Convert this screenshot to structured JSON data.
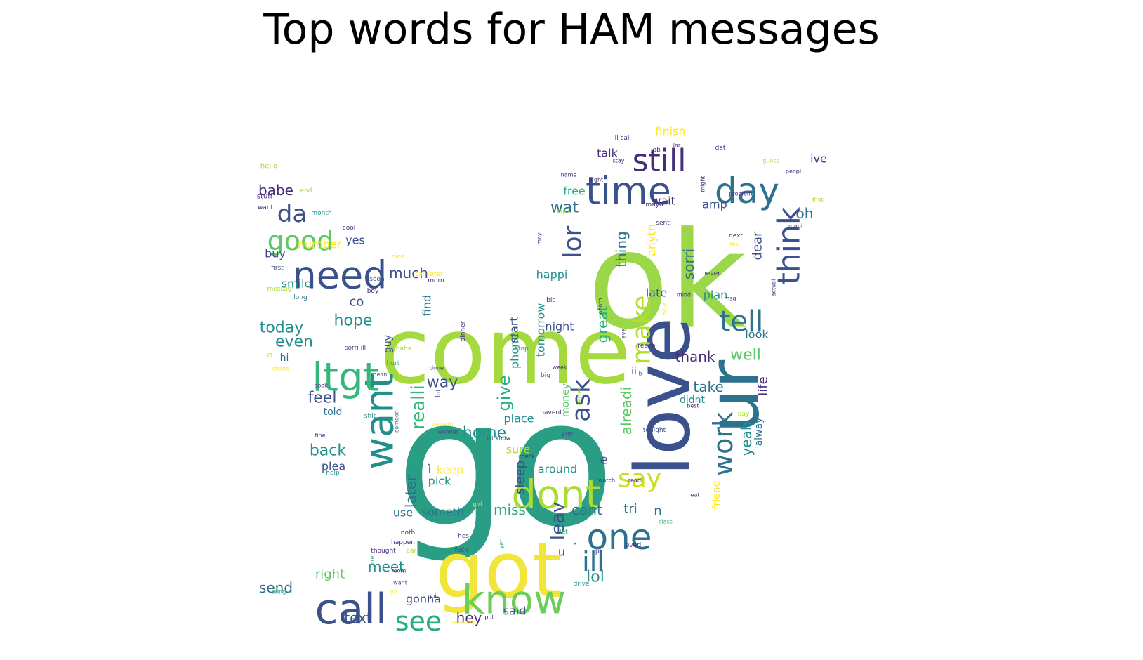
{
  "chart_data": {
    "type": "wordcloud",
    "title": "Top words for HAM messages",
    "mask_shape": "twitter-bird",
    "background": "#ffffff",
    "colormap": "viridis",
    "palette": [
      "#440154",
      "#472c7a",
      "#3b518b",
      "#2c718e",
      "#21908d",
      "#27ad81",
      "#5cc863",
      "#aadc32",
      "#fde725"
    ],
    "words": [
      {
        "text": "go",
        "rank": 1,
        "color": "#2a9d85"
      },
      {
        "text": "ok",
        "rank": 2,
        "color": "#9ad84a"
      },
      {
        "text": "come",
        "rank": 3,
        "color": "#a5da3e"
      },
      {
        "text": "got",
        "rank": 4,
        "color": "#f2e53a"
      },
      {
        "text": "love",
        "rank": 5,
        "color": "#3b518b"
      },
      {
        "text": "ur",
        "rank": 6,
        "color": "#2c718e"
      },
      {
        "text": "know",
        "rank": 7,
        "color": "#6dcd59"
      },
      {
        "text": "call",
        "rank": 8,
        "color": "#3b518b"
      },
      {
        "text": "time",
        "rank": 9,
        "color": "#3b518b"
      },
      {
        "text": "want",
        "rank": 10,
        "color": "#21908d"
      },
      {
        "text": "ltgt",
        "rank": 11,
        "color": "#35b779"
      },
      {
        "text": "need",
        "rank": 12,
        "color": "#3b518b"
      },
      {
        "text": "day",
        "rank": 13,
        "color": "#2c718e"
      },
      {
        "text": "dont",
        "rank": 14,
        "color": "#aadc32"
      },
      {
        "text": "one",
        "rank": 15,
        "color": "#2c718e"
      },
      {
        "text": "good",
        "rank": 16,
        "color": "#5cc863"
      },
      {
        "text": "still",
        "rank": 17,
        "color": "#472c7a"
      },
      {
        "text": "think",
        "rank": 18,
        "color": "#3b518b"
      },
      {
        "text": "tell",
        "rank": 19,
        "color": "#2c718e"
      },
      {
        "text": "ask",
        "rank": 20,
        "color": "#3b518b"
      },
      {
        "text": "see",
        "rank": 21,
        "color": "#27ad81"
      },
      {
        "text": "say",
        "rank": 22,
        "color": "#c8e020"
      },
      {
        "text": "work",
        "rank": 23,
        "color": "#2c718e"
      },
      {
        "text": "make",
        "rank": 24,
        "color": "#b5de2b"
      },
      {
        "text": "da",
        "rank": 25,
        "color": "#3b518b"
      },
      {
        "text": "ill",
        "rank": 26,
        "color": "#2c718e"
      },
      {
        "text": "lor",
        "rank": 27,
        "color": "#3b518b"
      },
      {
        "text": "home",
        "rank": 28,
        "color": "#21908d"
      },
      {
        "text": "hope",
        "rank": 29,
        "color": "#21908d"
      },
      {
        "text": "today",
        "rank": 30,
        "color": "#21908d"
      },
      {
        "text": "wat",
        "rank": 31,
        "color": "#2c718e"
      },
      {
        "text": "babe",
        "rank": 32,
        "color": "#472c7a"
      },
      {
        "text": "much",
        "rank": 33,
        "color": "#3b518b"
      },
      {
        "text": "well",
        "rank": 34,
        "color": "#5cc863"
      },
      {
        "text": "take",
        "rank": 35,
        "color": "#2c718e"
      },
      {
        "text": "way",
        "rank": 36,
        "color": "#3b518b"
      },
      {
        "text": "give",
        "rank": 37,
        "color": "#27ad81"
      },
      {
        "text": "realli",
        "rank": 38,
        "color": "#35b779"
      },
      {
        "text": "feel",
        "rank": 39,
        "color": "#3b518b"
      },
      {
        "text": "back",
        "rank": 40,
        "color": "#21908d"
      },
      {
        "text": "even",
        "rank": 41,
        "color": "#21908d"
      },
      {
        "text": "meet",
        "rank": 42,
        "color": "#21908d"
      },
      {
        "text": "miss",
        "rank": 43,
        "color": "#27ad81"
      },
      {
        "text": "cant",
        "rank": 44,
        "color": "#2c718e"
      },
      {
        "text": "great",
        "rank": 45,
        "color": "#27ad81"
      },
      {
        "text": "alreadi",
        "rank": 46,
        "color": "#5cc863"
      },
      {
        "text": "thing",
        "rank": 47,
        "color": "#2c718e"
      },
      {
        "text": "sorri",
        "rank": 48,
        "color": "#2c718e"
      },
      {
        "text": "yeah",
        "rank": 49,
        "color": "#21908d"
      },
      {
        "text": "life",
        "rank": 50,
        "color": "#472c7a"
      },
      {
        "text": "thank",
        "rank": 51,
        "color": "#472c7a"
      },
      {
        "text": "leav",
        "rank": 52,
        "color": "#3b518b"
      },
      {
        "text": "lol",
        "rank": 53,
        "color": "#21908d"
      },
      {
        "text": "later",
        "rank": 54,
        "color": "#2c718e"
      },
      {
        "text": "send",
        "rank": 55,
        "color": "#2c718e"
      },
      {
        "text": "text",
        "rank": 56,
        "color": "#3b518b"
      },
      {
        "text": "hey",
        "rank": 57,
        "color": "#472c7a"
      },
      {
        "text": "oh",
        "rank": 58,
        "color": "#2c718e"
      },
      {
        "text": "dear",
        "rank": 59,
        "color": "#3b518b"
      },
      {
        "text": "happi",
        "rank": 60,
        "color": "#21908d"
      },
      {
        "text": "plan",
        "rank": 61,
        "color": "#21908d"
      },
      {
        "text": "co",
        "rank": 62,
        "color": "#3b518b"
      },
      {
        "text": "night",
        "rank": 63,
        "color": "#3b518b"
      },
      {
        "text": "tri",
        "rank": 64,
        "color": "#2c718e"
      },
      {
        "text": "n",
        "rank": 65,
        "color": "#2c718e"
      },
      {
        "text": "e",
        "rank": 66,
        "color": "#3b518b"
      },
      {
        "text": "ì",
        "rank": 67,
        "color": "#472c7a"
      },
      {
        "text": "keep",
        "rank": 68,
        "color": "#fde725"
      },
      {
        "text": "pick",
        "rank": 69,
        "color": "#21908d"
      },
      {
        "text": "use",
        "rank": 70,
        "color": "#2c718e"
      },
      {
        "text": "someth",
        "rank": 71,
        "color": "#2c718e"
      },
      {
        "text": "sleep",
        "rank": 72,
        "color": "#3b518b"
      },
      {
        "text": "phone",
        "rank": 73,
        "color": "#21908d"
      },
      {
        "text": "start",
        "rank": 74,
        "color": "#3b518b"
      },
      {
        "text": "tomorrow",
        "rank": 75,
        "color": "#21908d"
      },
      {
        "text": "find",
        "rank": 76,
        "color": "#2c718e"
      },
      {
        "text": "around",
        "rank": 77,
        "color": "#21908d"
      },
      {
        "text": "place",
        "rank": 78,
        "color": "#21908d"
      },
      {
        "text": "sure",
        "rank": 79,
        "color": "#aadc32"
      },
      {
        "text": "gonna",
        "rank": 80,
        "color": "#3b518b"
      },
      {
        "text": "said",
        "rank": 81,
        "color": "#3b518b"
      },
      {
        "text": "right",
        "rank": 82,
        "color": "#5cc863"
      },
      {
        "text": "u",
        "rank": 83,
        "color": "#3b518b"
      },
      {
        "text": "late",
        "rank": 84,
        "color": "#3b518b"
      },
      {
        "text": "look",
        "rank": 85,
        "color": "#2c718e"
      },
      {
        "text": "wait",
        "rank": 86,
        "color": "#472c7a"
      },
      {
        "text": "amp",
        "rank": 87,
        "color": "#3b518b"
      },
      {
        "text": "free",
        "rank": 88,
        "color": "#27ad81"
      },
      {
        "text": "talk",
        "rank": 89,
        "color": "#472c7a"
      },
      {
        "text": "finish",
        "rank": 90,
        "color": "#fde725"
      },
      {
        "text": "ive",
        "rank": 91,
        "color": "#472c7a"
      },
      {
        "text": "anyth",
        "rank": 92,
        "color": "#fde725"
      },
      {
        "text": "didnt",
        "rank": 93,
        "color": "#21908d"
      },
      {
        "text": "alway",
        "rank": 94,
        "color": "#2c718e"
      },
      {
        "text": "friend",
        "rank": 95,
        "color": "#fde725"
      },
      {
        "text": "smile",
        "rank": 96,
        "color": "#21908d"
      },
      {
        "text": "yes",
        "rank": 97,
        "color": "#3b518b"
      },
      {
        "text": "number",
        "rank": 98,
        "color": "#fde725"
      },
      {
        "text": "buy",
        "rank": 99,
        "color": "#3b518b"
      },
      {
        "text": "told",
        "rank": 100,
        "color": "#2c718e"
      },
      {
        "text": "plea",
        "rank": 101,
        "color": "#3b518b"
      },
      {
        "text": "hi",
        "rank": 102,
        "color": "#2c718e"
      },
      {
        "text": "guy",
        "rank": 103,
        "color": "#3b518b"
      },
      {
        "text": "money",
        "rank": 104,
        "color": "#5cc863"
      },
      {
        "text": "ii",
        "rank": 105,
        "color": "#3b518b"
      },
      {
        "text": "hello",
        "rank": 106,
        "color": "#aadc32"
      },
      {
        "text": "stuff",
        "rank": 107,
        "color": "#472c7a"
      },
      {
        "text": "want",
        "rank": 108,
        "color": "#472c7a"
      },
      {
        "text": "end",
        "rank": 109,
        "color": "#aadc32"
      },
      {
        "text": "month",
        "rank": 110,
        "color": "#21908d"
      },
      {
        "text": "cool",
        "rank": 111,
        "color": "#472c7a"
      },
      {
        "text": "first",
        "rank": 112,
        "color": "#3b518b"
      },
      {
        "text": "messag",
        "rank": 113,
        "color": "#aadc32"
      },
      {
        "text": "long",
        "rank": 114,
        "color": "#2c718e"
      },
      {
        "text": "nice",
        "rank": 115,
        "color": "#fde725"
      },
      {
        "text": "soon",
        "rank": 116,
        "color": "#3b518b"
      },
      {
        "text": "boy",
        "rank": 117,
        "color": "#472c7a"
      },
      {
        "text": "call later",
        "rank": 118,
        "color": "#fde725"
      },
      {
        "text": "morn",
        "rank": 119,
        "color": "#472c7a"
      },
      {
        "text": "ya",
        "rank": 120,
        "color": "#aadc32"
      },
      {
        "text": "sorri ill",
        "rank": 121,
        "color": "#3b518b"
      },
      {
        "text": "haha",
        "rank": 122,
        "color": "#aadc32"
      },
      {
        "text": "hurt",
        "rank": 123,
        "color": "#27ad81"
      },
      {
        "text": "chang",
        "rank": 124,
        "color": "#fde725"
      },
      {
        "text": "done",
        "rank": 125,
        "color": "#472c7a"
      },
      {
        "text": "mean",
        "rank": 126,
        "color": "#3b518b"
      },
      {
        "text": "book",
        "rank": 127,
        "color": "#472c7a"
      },
      {
        "text": "dinner",
        "rank": 128,
        "color": "#472c7a"
      },
      {
        "text": "lot",
        "rank": 129,
        "color": "#3b518b"
      },
      {
        "text": "shit",
        "rank": 130,
        "color": "#21908d"
      },
      {
        "text": "someon",
        "rank": 131,
        "color": "#2c718e"
      },
      {
        "text": "fine",
        "rank": 132,
        "color": "#472c7a"
      },
      {
        "text": "person",
        "rank": 133,
        "color": "#fde725"
      },
      {
        "text": "wonder",
        "rank": 134,
        "color": "#3b518b"
      },
      {
        "text": "let know",
        "rank": 135,
        "color": "#3b518b"
      },
      {
        "text": "check",
        "rank": 136,
        "color": "#472c7a"
      },
      {
        "text": "help",
        "rank": 137,
        "color": "#21908d"
      },
      {
        "text": "girl",
        "rank": 138,
        "color": "#fde725"
      },
      {
        "text": "noth",
        "rank": 139,
        "color": "#472c7a"
      },
      {
        "text": "happen",
        "rank": 140,
        "color": "#472c7a"
      },
      {
        "text": "thought",
        "rank": 141,
        "color": "#472c7a"
      },
      {
        "text": "car",
        "rank": 142,
        "color": "#aadc32"
      },
      {
        "text": "room",
        "rank": 143,
        "color": "#472c7a"
      },
      {
        "text": "want",
        "rank": 144,
        "color": "#3b518b"
      },
      {
        "text": "care",
        "rank": 145,
        "color": "#21908d"
      },
      {
        "text": "quit",
        "rank": 146,
        "color": "#472c7a"
      },
      {
        "text": "yo",
        "rank": 147,
        "color": "#fde725"
      },
      {
        "text": "bring",
        "rank": 148,
        "color": "#27ad81"
      },
      {
        "text": "hes",
        "rank": 149,
        "color": "#472c7a"
      },
      {
        "text": "fuck",
        "rank": 150,
        "color": "#3b518b"
      },
      {
        "text": "yet",
        "rank": 151,
        "color": "#27ad81"
      },
      {
        "text": "let",
        "rank": 152,
        "color": "#27ad81"
      },
      {
        "text": "v",
        "rank": 153,
        "color": "#3b518b"
      },
      {
        "text": "pl",
        "rank": 154,
        "color": "#472c7a"
      },
      {
        "text": "everi",
        "rank": 155,
        "color": "#472c7a"
      },
      {
        "text": "class",
        "rank": 156,
        "color": "#27ad81"
      },
      {
        "text": "drive",
        "rank": 157,
        "color": "#21908d"
      },
      {
        "text": "rememb",
        "rank": 158,
        "color": "#fde725"
      },
      {
        "text": "put",
        "rank": 159,
        "color": "#472c7a"
      },
      {
        "text": "watch",
        "rank": 160,
        "color": "#472c7a"
      },
      {
        "text": "readi",
        "rank": 161,
        "color": "#472c7a"
      },
      {
        "text": "eat",
        "rank": 162,
        "color": "#472c7a"
      },
      {
        "text": "tonight",
        "rank": 163,
        "color": "#3b518b"
      },
      {
        "text": "pay",
        "rank": 164,
        "color": "#aadc32"
      },
      {
        "text": "yup",
        "rank": 165,
        "color": "#3b518b"
      },
      {
        "text": "havent",
        "rank": 166,
        "color": "#472c7a"
      },
      {
        "text": "big",
        "rank": 167,
        "color": "#3b518b"
      },
      {
        "text": "week",
        "rank": 168,
        "color": "#472c7a"
      },
      {
        "text": "better",
        "rank": 169,
        "color": "#aadc32"
      },
      {
        "text": "best",
        "rank": 170,
        "color": "#472c7a"
      },
      {
        "text": "b",
        "rank": 171,
        "color": "#2c718e"
      },
      {
        "text": "stop",
        "rank": 172,
        "color": "#21908d"
      },
      {
        "text": "reach",
        "rank": 173,
        "color": "#472c7a"
      },
      {
        "text": "bit",
        "rank": 174,
        "color": "#472c7a"
      },
      {
        "text": "anoth",
        "rank": 175,
        "color": "#472c7a"
      },
      {
        "text": "eve",
        "rank": 176,
        "color": "#472c7a"
      },
      {
        "text": "hour",
        "rank": 177,
        "color": "#fde725"
      },
      {
        "text": "mind",
        "rank": 178,
        "color": "#472c7a"
      },
      {
        "text": "actual",
        "rank": 179,
        "color": "#472c7a"
      },
      {
        "text": "msg",
        "rank": 180,
        "color": "#472c7a"
      },
      {
        "text": "never",
        "rank": 181,
        "color": "#472c7a"
      },
      {
        "text": "thk",
        "rank": 182,
        "color": "#fde725"
      },
      {
        "text": "next",
        "rank": 183,
        "color": "#472c7a"
      },
      {
        "text": "sent",
        "rank": 184,
        "color": "#472c7a"
      },
      {
        "text": "mayb",
        "rank": 185,
        "color": "#472c7a"
      },
      {
        "text": "mani",
        "rank": 186,
        "color": "#472c7a"
      },
      {
        "text": "shop",
        "rank": 187,
        "color": "#aadc32"
      },
      {
        "text": "problem",
        "rank": 188,
        "color": "#472c7a"
      },
      {
        "text": "might",
        "rank": 189,
        "color": "#472c7a"
      },
      {
        "text": "peopl",
        "rank": 190,
        "color": "#472c7a"
      },
      {
        "text": "guess",
        "rank": 191,
        "color": "#aadc32"
      },
      {
        "text": "dat",
        "rank": 192,
        "color": "#472c7a"
      },
      {
        "text": "lar",
        "rank": 193,
        "color": "#472c7a"
      },
      {
        "text": "ill call",
        "rank": 194,
        "color": "#472c7a"
      },
      {
        "text": "stay",
        "rank": 195,
        "color": "#472c7a"
      },
      {
        "text": "job",
        "rank": 196,
        "color": "#472c7a"
      },
      {
        "text": "name",
        "rank": 197,
        "color": "#472c7a"
      },
      {
        "text": "aight",
        "rank": 198,
        "color": "#472c7a"
      },
      {
        "text": "repli",
        "rank": 199,
        "color": "#aadc32"
      },
      {
        "text": "may",
        "rank": 200,
        "color": "#472c7a"
      }
    ]
  }
}
